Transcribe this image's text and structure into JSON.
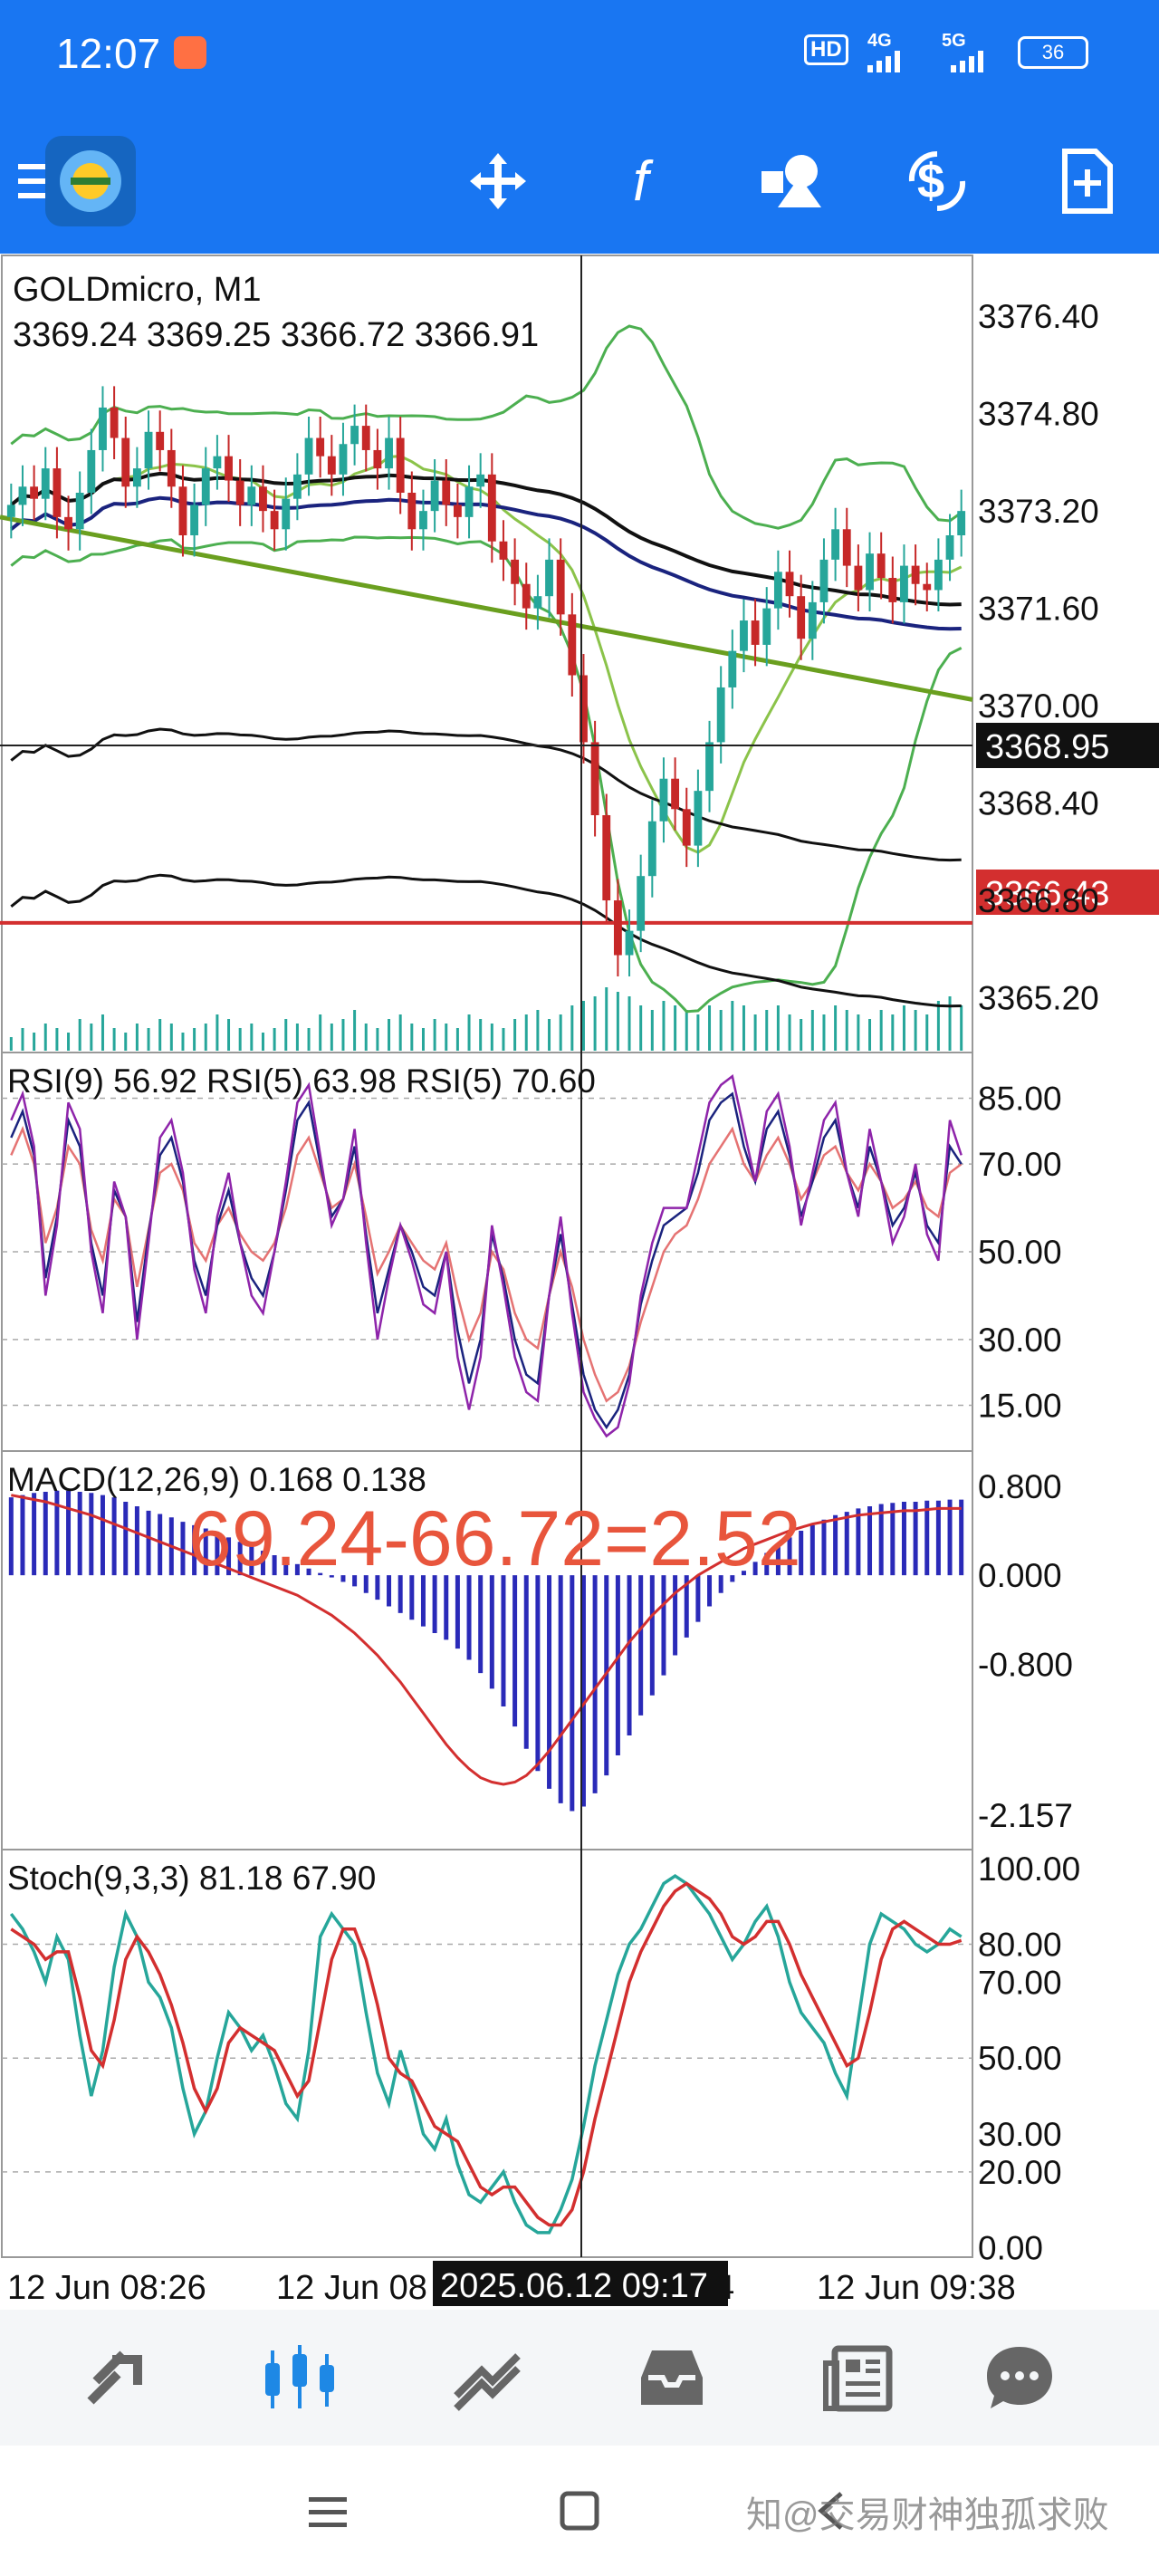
{
  "status_bar": {
    "time": "12:07",
    "network_hd": "HD",
    "net_4g": "4G",
    "net_5g": "5G",
    "battery": "36"
  },
  "toolbar": {
    "icons": [
      "menu-icon",
      "app-logo",
      "crosshair-icon",
      "function-icon",
      "objects-icon",
      "trade-icon",
      "new-order-icon"
    ]
  },
  "colors": {
    "accent": "#1976f2",
    "price_red": "#d32f2f",
    "bull": "#26a69a",
    "bear": "#c62828"
  },
  "chart_data": [
    {
      "type": "candlestick",
      "title": "GOLDmicro, M1",
      "ohlc_label": "3369.24 3369.25 3366.72 3366.91",
      "ylim": [
        3364.3,
        3377.4
      ],
      "y_ticks": [
        "3376.40",
        "3374.80",
        "3373.20",
        "3371.60",
        "3370.00",
        "3368.40",
        "3366.80",
        "3365.20"
      ],
      "bid_price": "3368.95",
      "line_price": "3366.43",
      "series": [
        {
          "name": "close",
          "values": [
            3373.3,
            3373.6,
            3373.4,
            3373.9,
            3373.1,
            3372.9,
            3373.5,
            3374.2,
            3374.9,
            3374.4,
            3373.6,
            3373.9,
            3374.5,
            3374.2,
            3373.6,
            3372.8,
            3373.3,
            3373.9,
            3374.1,
            3373.7,
            3373.3,
            3373.6,
            3373.2,
            3372.9,
            3373.4,
            3373.8,
            3374.4,
            3374.1,
            3373.8,
            3374.3,
            3374.6,
            3374.2,
            3373.9,
            3374.4,
            3373.5,
            3372.9,
            3373.2,
            3373.7,
            3373.3,
            3373.1,
            3373.6,
            3373.8,
            3372.7,
            3372.4,
            3372.0,
            3371.6,
            3371.8,
            3372.4,
            3371.5,
            3370.5,
            3369.4,
            3368.2,
            3366.8,
            3365.9,
            3366.3,
            3367.2,
            3368.1,
            3368.8,
            3368.3,
            3367.7,
            3368.6,
            3369.4,
            3370.3,
            3370.9,
            3371.4,
            3371.0,
            3371.6,
            3372.2,
            3371.8,
            3371.1,
            3371.7,
            3372.4,
            3372.9,
            3372.3,
            3371.9,
            3372.5,
            3372.1,
            3371.7,
            3372.3,
            3372.0,
            3371.9,
            3372.4,
            3372.8,
            3373.2
          ]
        },
        {
          "name": "volume",
          "values": [
            3,
            5,
            4,
            6,
            5,
            4,
            7,
            6,
            8,
            5,
            4,
            6,
            5,
            7,
            6,
            4,
            5,
            6,
            8,
            7,
            5,
            6,
            4,
            5,
            7,
            6,
            5,
            8,
            6,
            7,
            9,
            6,
            5,
            7,
            8,
            6,
            5,
            7,
            6,
            5,
            8,
            7,
            6,
            5,
            7,
            8,
            9,
            7,
            8,
            10,
            11,
            12,
            14,
            13,
            12,
            10,
            9,
            11,
            10,
            9,
            8,
            10,
            9,
            11,
            10,
            8,
            9,
            10,
            8,
            7,
            9,
            8,
            10,
            9,
            8,
            7,
            9,
            8,
            10,
            9,
            8,
            11,
            12,
            10
          ]
        }
      ],
      "bollinger_bands": {
        "middle_color": "#4caf50"
      },
      "moving_averages": [
        "black",
        "blue",
        "green-trendline"
      ]
    },
    {
      "type": "line",
      "title": "RSI(9) 56.92 RSI(5) 63.98 RSI(5) 70.60",
      "ylim": [
        5,
        95
      ],
      "y_ticks": [
        "85.00",
        "70.00",
        "50.00",
        "30.00",
        "15.00"
      ],
      "series": [
        {
          "name": "RSI(9)",
          "values": [
            72,
            78,
            70,
            52,
            60,
            74,
            70,
            55,
            48,
            62,
            58,
            42,
            55,
            68,
            70,
            64,
            52,
            48,
            56,
            60,
            54,
            50,
            48,
            52,
            60,
            72,
            76,
            68,
            60,
            62,
            70,
            58,
            45,
            50,
            56,
            52,
            48,
            46,
            52,
            40,
            30,
            36,
            50,
            46,
            36,
            30,
            28,
            40,
            50,
            42,
            30,
            22,
            16,
            18,
            24,
            34,
            42,
            50,
            54,
            56,
            62,
            70,
            74,
            78,
            70,
            66,
            72,
            76,
            70,
            62,
            66,
            72,
            74,
            68,
            64,
            70,
            66,
            60,
            62,
            66,
            60,
            58,
            68,
            70
          ]
        },
        {
          "name": "RSI(5)",
          "values": [
            76,
            82,
            72,
            44,
            58,
            80,
            74,
            52,
            40,
            64,
            58,
            34,
            54,
            72,
            76,
            66,
            48,
            40,
            56,
            64,
            52,
            44,
            40,
            50,
            64,
            80,
            84,
            70,
            58,
            62,
            74,
            54,
            36,
            46,
            56,
            50,
            42,
            40,
            50,
            32,
            20,
            30,
            54,
            44,
            30,
            22,
            20,
            40,
            54,
            38,
            22,
            14,
            10,
            14,
            22,
            38,
            48,
            56,
            58,
            60,
            68,
            80,
            84,
            86,
            74,
            66,
            78,
            82,
            72,
            58,
            66,
            76,
            80,
            68,
            60,
            74,
            66,
            56,
            60,
            68,
            56,
            52,
            74,
            70
          ]
        },
        {
          "name": "RSI(5)b",
          "values": [
            80,
            86,
            74,
            40,
            56,
            84,
            78,
            50,
            36,
            66,
            58,
            30,
            52,
            76,
            80,
            68,
            46,
            36,
            58,
            68,
            52,
            40,
            36,
            50,
            66,
            84,
            88,
            72,
            56,
            62,
            78,
            52,
            30,
            44,
            56,
            48,
            38,
            36,
            50,
            26,
            14,
            26,
            56,
            42,
            26,
            18,
            16,
            40,
            58,
            36,
            18,
            12,
            8,
            10,
            20,
            40,
            52,
            60,
            60,
            60,
            72,
            84,
            88,
            90,
            78,
            66,
            82,
            86,
            74,
            56,
            68,
            80,
            84,
            68,
            58,
            78,
            66,
            52,
            58,
            70,
            54,
            48,
            80,
            72
          ]
        }
      ]
    },
    {
      "type": "bar",
      "title": "MACD(12,26,9) 0.168 0.138",
      "annotation": "69.24-66.72=2.52",
      "ylim": [
        -2.45,
        1.1
      ],
      "y_ticks": [
        "0.800",
        "0.000",
        "-0.800",
        "-2.157"
      ],
      "series": [
        {
          "name": "MACD",
          "values": [
            0.7,
            0.72,
            0.74,
            0.75,
            0.76,
            0.76,
            0.75,
            0.74,
            0.72,
            0.7,
            0.66,
            0.62,
            0.58,
            0.55,
            0.52,
            0.48,
            0.45,
            0.42,
            0.38,
            0.34,
            0.3,
            0.26,
            0.22,
            0.18,
            0.14,
            0.1,
            0.06,
            0.02,
            -0.02,
            -0.06,
            -0.1,
            -0.16,
            -0.22,
            -0.28,
            -0.34,
            -0.4,
            -0.46,
            -0.52,
            -0.58,
            -0.66,
            -0.76,
            -0.88,
            -1.02,
            -1.18,
            -1.36,
            -1.56,
            -1.76,
            -1.92,
            -2.05,
            -2.12,
            -2.08,
            -1.96,
            -1.8,
            -1.62,
            -1.44,
            -1.26,
            -1.08,
            -0.9,
            -0.72,
            -0.56,
            -0.42,
            -0.28,
            -0.16,
            -0.06,
            0.04,
            0.12,
            0.2,
            0.28,
            0.34,
            0.4,
            0.45,
            0.5,
            0.54,
            0.57,
            0.6,
            0.62,
            0.64,
            0.65,
            0.66,
            0.66,
            0.67,
            0.67,
            0.68,
            0.68
          ]
        },
        {
          "name": "Signal",
          "values": [
            0.72,
            0.7,
            0.68,
            0.66,
            0.63,
            0.6,
            0.57,
            0.54,
            0.5,
            0.46,
            0.42,
            0.38,
            0.34,
            0.3,
            0.26,
            0.22,
            0.18,
            0.14,
            0.1,
            0.06,
            0.02,
            -0.02,
            -0.06,
            -0.1,
            -0.14,
            -0.18,
            -0.24,
            -0.3,
            -0.36,
            -0.44,
            -0.52,
            -0.62,
            -0.72,
            -0.84,
            -0.96,
            -1.1,
            -1.24,
            -1.38,
            -1.52,
            -1.64,
            -1.74,
            -1.82,
            -1.86,
            -1.88,
            -1.86,
            -1.8,
            -1.7,
            -1.58,
            -1.44,
            -1.3,
            -1.16,
            -1.02,
            -0.88,
            -0.74,
            -0.6,
            -0.48,
            -0.36,
            -0.26,
            -0.16,
            -0.08,
            0.0,
            0.06,
            0.12,
            0.18,
            0.24,
            0.28,
            0.32,
            0.36,
            0.4,
            0.43,
            0.46,
            0.48,
            0.5,
            0.52,
            0.54,
            0.55,
            0.56,
            0.57,
            0.58,
            0.58,
            0.59,
            0.6,
            0.6,
            0.6
          ]
        }
      ]
    },
    {
      "type": "line",
      "title": "Stoch(9,3,3) 81.18 67.90",
      "ylim": [
        -2,
        104
      ],
      "y_ticks": [
        "100.00",
        "80.00",
        "70.00",
        "50.00",
        "30.00",
        "20.00",
        "0.00"
      ],
      "series": [
        {
          "name": "%K",
          "values": [
            88,
            84,
            78,
            70,
            82,
            76,
            56,
            40,
            52,
            74,
            88,
            82,
            70,
            66,
            58,
            42,
            30,
            36,
            50,
            62,
            58,
            52,
            56,
            48,
            38,
            34,
            52,
            82,
            88,
            84,
            80,
            62,
            46,
            38,
            52,
            42,
            30,
            26,
            34,
            22,
            14,
            12,
            16,
            20,
            12,
            6,
            4,
            4,
            10,
            18,
            32,
            48,
            60,
            72,
            80,
            84,
            90,
            96,
            98,
            96,
            92,
            88,
            82,
            76,
            80,
            86,
            90,
            82,
            70,
            62,
            58,
            54,
            46,
            40,
            60,
            80,
            88,
            86,
            84,
            80,
            78,
            80,
            84,
            82
          ]
        },
        {
          "name": "%D",
          "values": [
            84,
            82,
            80,
            76,
            78,
            78,
            66,
            52,
            48,
            60,
            76,
            82,
            78,
            72,
            64,
            54,
            42,
            36,
            42,
            54,
            58,
            56,
            54,
            52,
            46,
            40,
            44,
            60,
            76,
            84,
            84,
            76,
            64,
            50,
            46,
            44,
            38,
            32,
            30,
            28,
            22,
            16,
            14,
            16,
            16,
            12,
            8,
            6,
            6,
            10,
            20,
            34,
            46,
            58,
            70,
            78,
            84,
            90,
            94,
            96,
            94,
            92,
            88,
            82,
            80,
            82,
            86,
            86,
            80,
            72,
            66,
            60,
            54,
            48,
            50,
            62,
            76,
            84,
            86,
            84,
            82,
            80,
            80,
            81
          ]
        }
      ]
    }
  ],
  "time_axis": {
    "labels": [
      "12 Jun 08:26",
      "12 Jun 08",
      "4",
      "12 Jun 09:38"
    ],
    "crosshair_time": "2025.06.12 09:17"
  },
  "bottom_nav": {
    "items": [
      "quotes-icon",
      "chart-icon",
      "trade-icon",
      "history-icon",
      "news-icon",
      "chat-icon"
    ]
  },
  "watermark": "知@交易财神独孤求败"
}
